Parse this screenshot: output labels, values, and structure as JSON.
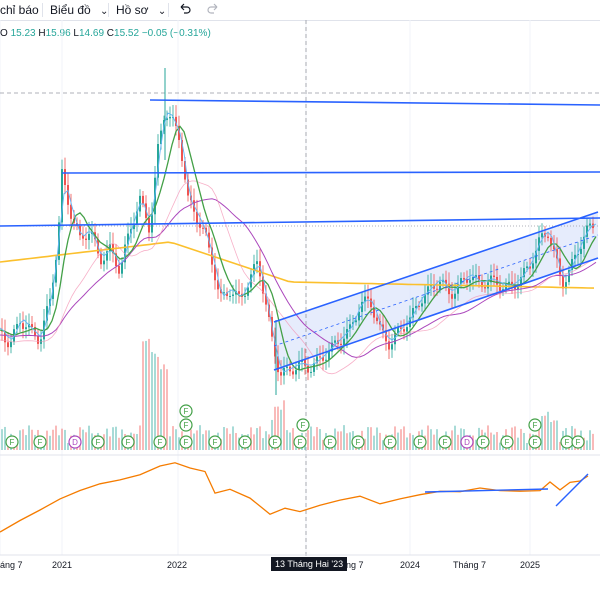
{
  "toolbar": {
    "indicators_label": "chỉ báo",
    "chart_label": "Biểu đồ",
    "profile_label": "Hồ sơ",
    "chevron": "⌄",
    "undo_icon": "undo-icon",
    "redo_icon": "redo-icon"
  },
  "ohlc": {
    "o_label": "O",
    "o_value": "15.23",
    "h_label": "H",
    "h_value": "15.96",
    "l_label": "L",
    "l_value": "14.69",
    "c_label": "C",
    "c_value": "15.52",
    "change": "−0.05 (−0.31%)"
  },
  "time_axis": {
    "labels": [
      "áng 7",
      "2021",
      "2022",
      "háng 7",
      "2024",
      "Tháng 7",
      "2025"
    ],
    "crosshair_date": "13 Tháng Hai '23"
  },
  "events": {
    "labels": [
      "F",
      "F",
      "D",
      "F",
      "F",
      "F",
      "F",
      "F",
      "F",
      "F",
      "F",
      "F",
      "F",
      "F",
      "F",
      "F",
      "D",
      "F",
      "F",
      "F",
      "F",
      "F"
    ],
    "dividend_label": "D",
    "earnings_label": "F"
  },
  "colors": {
    "up": "#26a69a",
    "down": "#ef5350",
    "trendline": "#2962ff",
    "channel_fill": "#dbe4fb",
    "ma_green": "#43a047",
    "ma_purple": "#ab47bc",
    "ma_yellow": "#fbc02d",
    "oscillator": "#f57c00"
  }
}
